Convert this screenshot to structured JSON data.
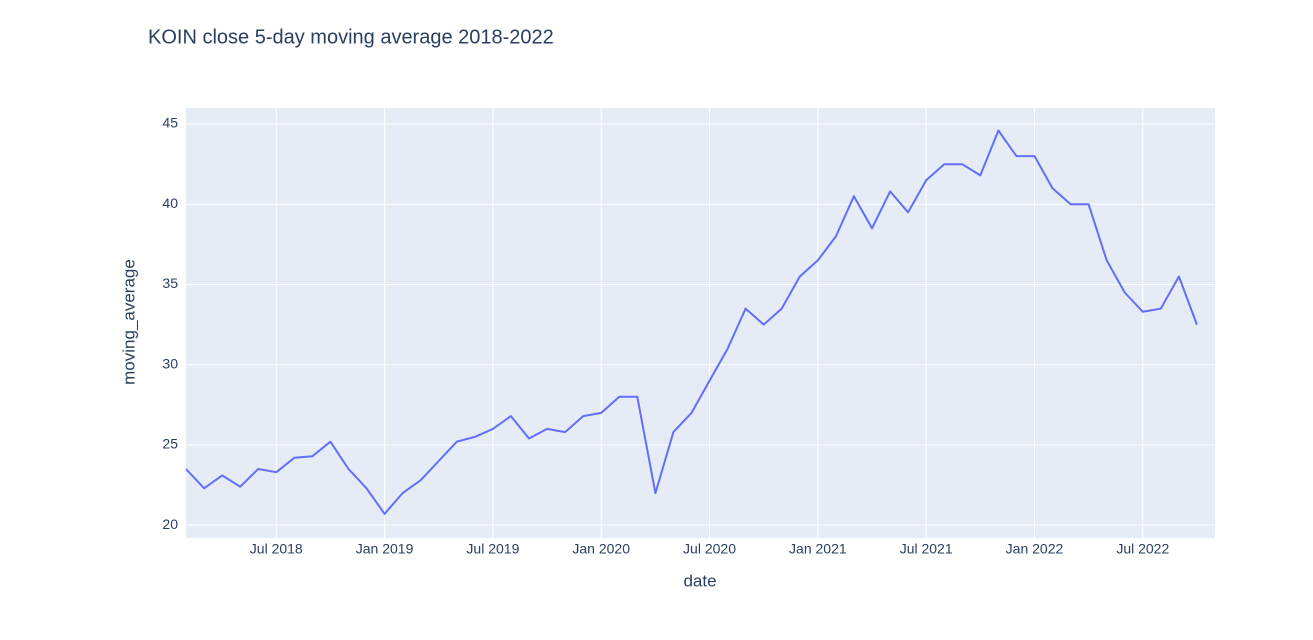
{
  "chart_data": {
    "type": "line",
    "title": "KOIN close 5-day moving average 2018-2022",
    "x_label": "date",
    "y_label": "moving_average",
    "x": [
      "2018-02",
      "2018-03",
      "2018-04",
      "2018-05",
      "2018-06",
      "2018-07",
      "2018-08",
      "2018-09",
      "2018-10",
      "2018-11",
      "2018-12",
      "2019-01",
      "2019-02",
      "2019-03",
      "2019-04",
      "2019-05",
      "2019-06",
      "2019-07",
      "2019-08",
      "2019-09",
      "2019-10",
      "2019-11",
      "2019-12",
      "2020-01",
      "2020-02",
      "2020-03",
      "2020-04",
      "2020-05",
      "2020-06",
      "2020-07",
      "2020-08",
      "2020-09",
      "2020-10",
      "2020-11",
      "2020-12",
      "2021-01",
      "2021-02",
      "2021-03",
      "2021-04",
      "2021-05",
      "2021-06",
      "2021-07",
      "2021-08",
      "2021-09",
      "2021-10",
      "2021-11",
      "2021-12",
      "2022-01",
      "2022-02",
      "2022-03",
      "2022-04",
      "2022-05",
      "2022-06",
      "2022-07",
      "2022-08",
      "2022-09",
      "2022-10"
    ],
    "values": [
      23.5,
      22.3,
      23.1,
      22.4,
      23.5,
      23.3,
      24.2,
      24.3,
      25.2,
      23.5,
      22.3,
      20.7,
      22.0,
      22.8,
      24.0,
      25.2,
      25.5,
      26.0,
      26.8,
      25.4,
      26.0,
      25.8,
      26.8,
      27.0,
      28.0,
      28.0,
      22.0,
      25.8,
      27.0,
      29.0,
      31.0,
      33.5,
      32.5,
      33.5,
      35.5,
      36.5,
      38.0,
      40.5,
      38.5,
      40.8,
      39.5,
      41.5,
      42.5,
      42.5,
      41.8,
      44.6,
      43.0,
      43.0,
      41.0,
      40.0,
      40.0,
      36.5,
      34.5,
      33.3,
      33.5,
      35.5,
      32.5
    ],
    "color": "#636efa",
    "xlim": [
      "2018-02",
      "2022-11"
    ],
    "xticks": [
      {
        "value": "2018-07",
        "label": "Jul 2018"
      },
      {
        "value": "2019-01",
        "label": "Jan 2019"
      },
      {
        "value": "2019-07",
        "label": "Jul 2019"
      },
      {
        "value": "2020-01",
        "label": "Jan 2020"
      },
      {
        "value": "2020-07",
        "label": "Jul 2020"
      },
      {
        "value": "2021-01",
        "label": "Jan 2021"
      },
      {
        "value": "2021-07",
        "label": "Jul 2021"
      },
      {
        "value": "2022-01",
        "label": "Jan 2022"
      },
      {
        "value": "2022-07",
        "label": "Jul 2022"
      }
    ],
    "ylim": [
      19.2,
      46
    ],
    "yticks": [
      20,
      25,
      30,
      35,
      40,
      45
    ],
    "grid": true
  }
}
